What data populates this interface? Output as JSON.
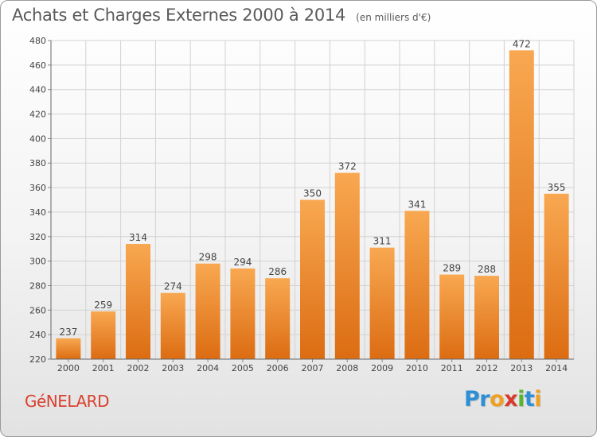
{
  "header": {
    "title": "Achats et Charges Externes 2000 à 2014",
    "unit": "(en milliers d'€)"
  },
  "footer": {
    "commune": "GéNELARD",
    "logo_letters": [
      "P",
      "r",
      "o",
      "x",
      "i",
      "t",
      "i"
    ],
    "logo_colors": [
      "#2e8fd6",
      "#2e8fd6",
      "#f0a020",
      "#d93a2b",
      "#5ab52e",
      "#2e8fd6",
      "#f0a020"
    ]
  },
  "colors": {
    "bar_top": "#f8a851",
    "bar_bottom": "#dc6c12",
    "title": "#5a5a5a",
    "commune": "#d9402f"
  },
  "chart_data": {
    "type": "bar",
    "categories": [
      "2000",
      "2001",
      "2002",
      "2003",
      "2004",
      "2005",
      "2006",
      "2007",
      "2008",
      "2009",
      "2010",
      "2011",
      "2012",
      "2013",
      "2014"
    ],
    "values": [
      237,
      259,
      314,
      274,
      298,
      294,
      286,
      350,
      372,
      311,
      341,
      289,
      288,
      472,
      355
    ],
    "ylim": [
      220,
      480
    ],
    "yticks": [
      220,
      240,
      260,
      280,
      300,
      320,
      340,
      360,
      380,
      400,
      420,
      440,
      460,
      480
    ],
    "grid": true,
    "title": "Achats et Charges Externes 2000 à 2014",
    "xlabel": "",
    "ylabel": ""
  }
}
